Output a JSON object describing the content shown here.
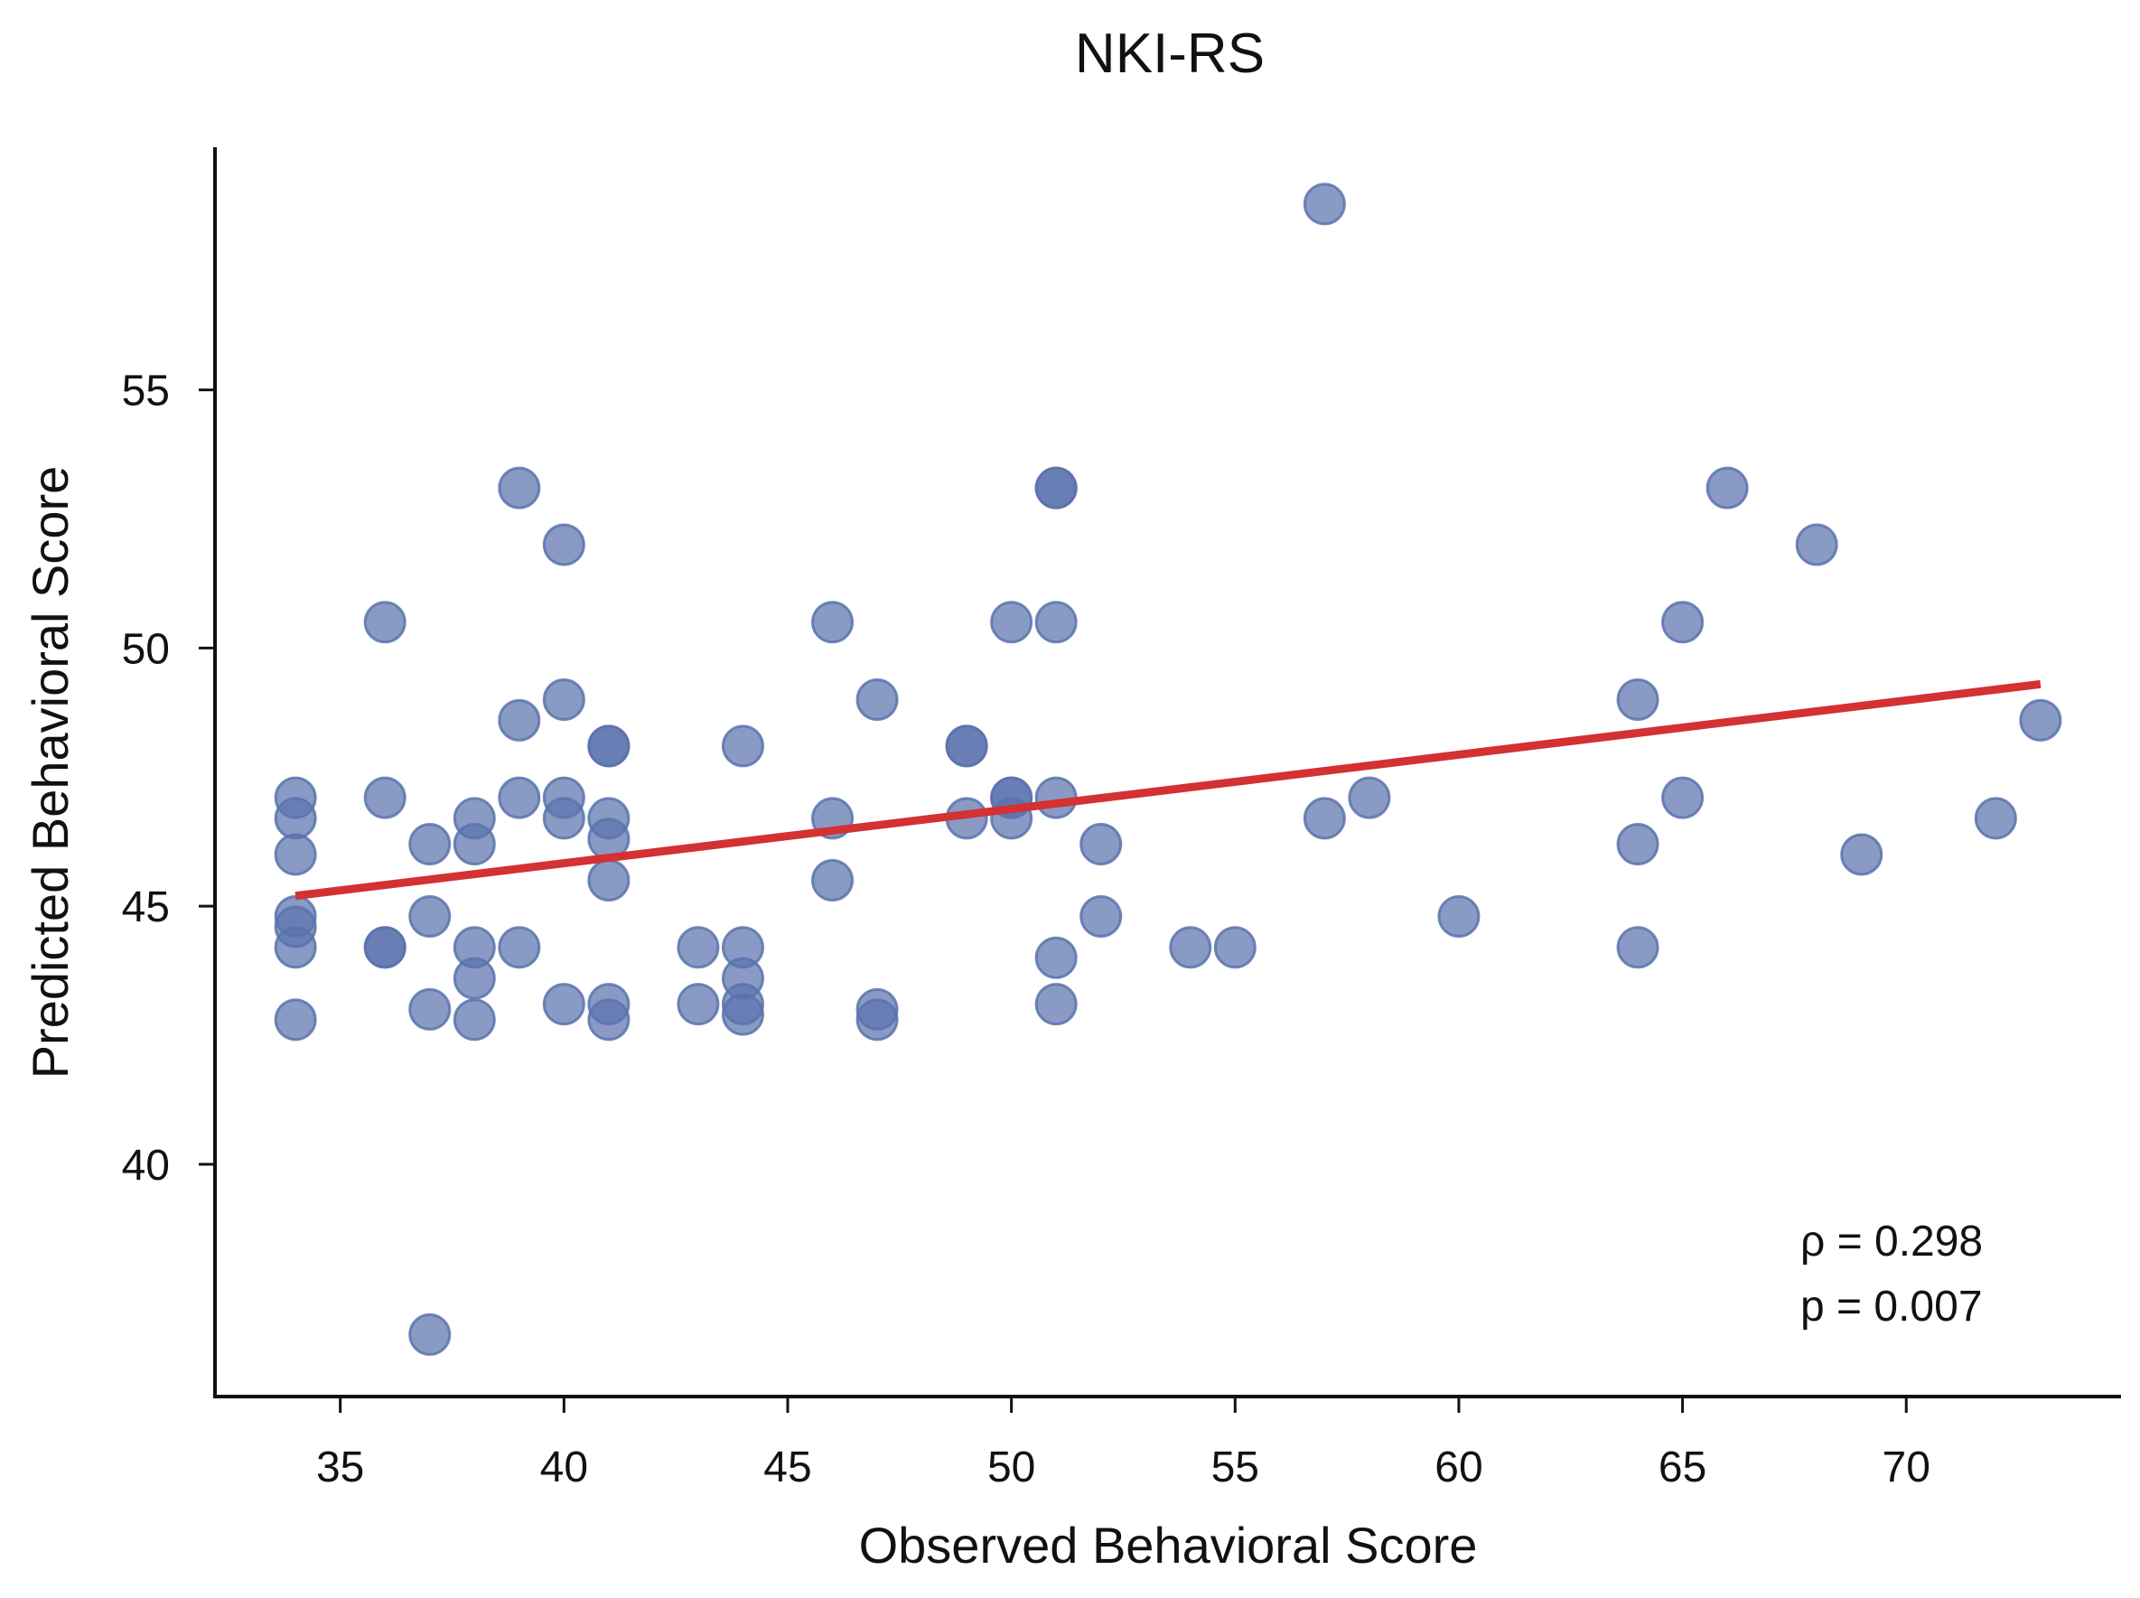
{
  "chart_data": {
    "type": "scatter",
    "title": "NKI-RS",
    "xlabel": "Observed Behavioral Score",
    "ylabel": "Predicted Behavioral Score",
    "xlim": [
      32.2,
      74.8
    ],
    "ylim": [
      35.5,
      59.7
    ],
    "xticks": [
      35,
      40,
      45,
      50,
      55,
      60,
      65,
      70
    ],
    "yticks": [
      40,
      45,
      50,
      55
    ],
    "grid": false,
    "point_color": "#5b73ad",
    "line_color": "#d33132",
    "points": [
      {
        "x": 34,
        "y": 47.1
      },
      {
        "x": 34,
        "y": 46.7
      },
      {
        "x": 34,
        "y": 46.0
      },
      {
        "x": 34,
        "y": 44.8
      },
      {
        "x": 34,
        "y": 44.6
      },
      {
        "x": 34,
        "y": 44.2
      },
      {
        "x": 34,
        "y": 42.8
      },
      {
        "x": 36,
        "y": 50.5
      },
      {
        "x": 36,
        "y": 47.1
      },
      {
        "x": 36,
        "y": 44.2
      },
      {
        "x": 36,
        "y": 44.2
      },
      {
        "x": 37,
        "y": 46.2
      },
      {
        "x": 37,
        "y": 44.8
      },
      {
        "x": 37,
        "y": 43.0
      },
      {
        "x": 37,
        "y": 36.7
      },
      {
        "x": 38,
        "y": 46.7
      },
      {
        "x": 38,
        "y": 46.2
      },
      {
        "x": 38,
        "y": 44.2
      },
      {
        "x": 38,
        "y": 43.6
      },
      {
        "x": 38,
        "y": 42.8
      },
      {
        "x": 39,
        "y": 53.1
      },
      {
        "x": 39,
        "y": 48.6
      },
      {
        "x": 39,
        "y": 47.1
      },
      {
        "x": 39,
        "y": 44.2
      },
      {
        "x": 40,
        "y": 52.0
      },
      {
        "x": 40,
        "y": 49.0
      },
      {
        "x": 40,
        "y": 47.1
      },
      {
        "x": 40,
        "y": 46.7
      },
      {
        "x": 40,
        "y": 43.1
      },
      {
        "x": 41,
        "y": 48.1
      },
      {
        "x": 41,
        "y": 48.1
      },
      {
        "x": 41,
        "y": 46.7
      },
      {
        "x": 41,
        "y": 46.3
      },
      {
        "x": 41,
        "y": 45.5
      },
      {
        "x": 41,
        "y": 43.1
      },
      {
        "x": 41,
        "y": 42.8
      },
      {
        "x": 43,
        "y": 44.2
      },
      {
        "x": 43,
        "y": 43.1
      },
      {
        "x": 44,
        "y": 48.1
      },
      {
        "x": 44,
        "y": 44.2
      },
      {
        "x": 44,
        "y": 43.6
      },
      {
        "x": 44,
        "y": 43.1
      },
      {
        "x": 44,
        "y": 42.9
      },
      {
        "x": 46,
        "y": 50.5
      },
      {
        "x": 46,
        "y": 46.7
      },
      {
        "x": 46,
        "y": 45.5
      },
      {
        "x": 47,
        "y": 49.0
      },
      {
        "x": 47,
        "y": 43.0
      },
      {
        "x": 47,
        "y": 42.8
      },
      {
        "x": 49,
        "y": 48.1
      },
      {
        "x": 49,
        "y": 48.1
      },
      {
        "x": 49,
        "y": 46.7
      },
      {
        "x": 50,
        "y": 50.5
      },
      {
        "x": 50,
        "y": 47.1
      },
      {
        "x": 50,
        "y": 47.1
      },
      {
        "x": 50,
        "y": 46.7
      },
      {
        "x": 51,
        "y": 53.1
      },
      {
        "x": 51,
        "y": 53.1
      },
      {
        "x": 51,
        "y": 50.5
      },
      {
        "x": 51,
        "y": 47.1
      },
      {
        "x": 51,
        "y": 44.0
      },
      {
        "x": 51,
        "y": 43.1
      },
      {
        "x": 52,
        "y": 46.2
      },
      {
        "x": 52,
        "y": 44.8
      },
      {
        "x": 54,
        "y": 44.2
      },
      {
        "x": 55,
        "y": 44.2
      },
      {
        "x": 57,
        "y": 58.6
      },
      {
        "x": 57,
        "y": 46.7
      },
      {
        "x": 58,
        "y": 47.1
      },
      {
        "x": 60,
        "y": 44.8
      },
      {
        "x": 64,
        "y": 49.0
      },
      {
        "x": 64,
        "y": 46.2
      },
      {
        "x": 64,
        "y": 44.2
      },
      {
        "x": 65,
        "y": 50.5
      },
      {
        "x": 65,
        "y": 47.1
      },
      {
        "x": 66,
        "y": 53.1
      },
      {
        "x": 68,
        "y": 52.0
      },
      {
        "x": 69,
        "y": 46.0
      },
      {
        "x": 72,
        "y": 46.7
      },
      {
        "x": 73,
        "y": 48.6
      }
    ],
    "fit_line": {
      "x": [
        34,
        73
      ],
      "y": [
        45.2,
        49.3
      ]
    },
    "annotations": [
      "ρ = 0.298",
      "p = 0.007"
    ]
  }
}
